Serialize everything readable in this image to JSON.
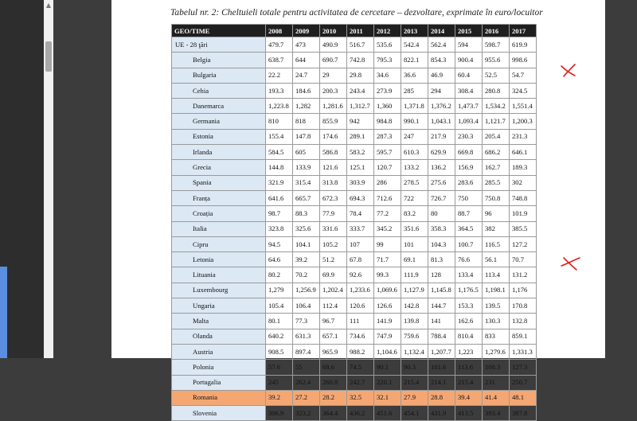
{
  "caption": "Tabelul nr. 2: Cheltuieli totale pentru activitatea de cercetare – dezvoltare, exprimate în euro/locuitor",
  "scrollbar": {
    "up_glyph": "▲"
  },
  "table": {
    "headers": [
      "GEO/TIME",
      "2008",
      "2009",
      "2010",
      "2011",
      "2012",
      "2013",
      "2014",
      "2015",
      "2016",
      "2017"
    ],
    "rows": [
      {
        "country": "UE - 28 ţări",
        "values": [
          "479.7",
          "473",
          "490.9",
          "516.7",
          "535.6",
          "542.4",
          "562.4",
          "594",
          "598.7",
          "619.9"
        ]
      },
      {
        "country": "Belgia",
        "values": [
          "638.7",
          "644",
          "690.7",
          "742.8",
          "795.3",
          "822.1",
          "854.3",
          "900.4",
          "955.6",
          "998.6"
        ]
      },
      {
        "country": "Bulgaria",
        "values": [
          "22.2",
          "24.7",
          "29",
          "29.8",
          "34.6",
          "36.6",
          "46.9",
          "60.4",
          "52.5",
          "54.7"
        ]
      },
      {
        "country": "Cehia",
        "values": [
          "193.3",
          "184.6",
          "200.3",
          "243.4",
          "273.9",
          "285",
          "294",
          "308.4",
          "280.8",
          "324.5"
        ]
      },
      {
        "country": "Danemarca",
        "values": [
          "1,223.8",
          "1,282",
          "1,281.6",
          "1,312.7",
          "1,360",
          "1,371.8",
          "1,376.2",
          "1,473.7",
          "1,534.2",
          "1,551.4"
        ]
      },
      {
        "country": "Germania",
        "values": [
          "810",
          "818",
          "855.9",
          "942",
          "984.8",
          "990.1",
          "1,043.1",
          "1,093.4",
          "1,121.7",
          "1,200.3"
        ]
      },
      {
        "country": "Estonia",
        "values": [
          "155.4",
          "147.8",
          "174.6",
          "289.1",
          "287.3",
          "247",
          "217.9",
          "230.3",
          "205.4",
          "231.3"
        ]
      },
      {
        "country": "Irlanda",
        "values": [
          "584.5",
          "605",
          "586.8",
          "583.2",
          "595.7",
          "610.3",
          "629.9",
          "669.8",
          "686.2",
          "646.1"
        ]
      },
      {
        "country": "Grecia",
        "values": [
          "144.8",
          "133.9",
          "121.6",
          "125.1",
          "120.7",
          "133.2",
          "136.2",
          "156.9",
          "162.7",
          "189.3"
        ]
      },
      {
        "country": "Spania",
        "values": [
          "321.9",
          "315.4",
          "313.8",
          "303.9",
          "286",
          "278.5",
          "275.6",
          "283.6",
          "285.5",
          "302"
        ]
      },
      {
        "country": "Franța",
        "values": [
          "641.6",
          "665.7",
          "672.3",
          "694.3",
          "712.6",
          "722",
          "726.7",
          "750",
          "750.8",
          "748.8"
        ]
      },
      {
        "country": "Croația",
        "values": [
          "98.7",
          "88.3",
          "77.9",
          "78.4",
          "77.2",
          "83.2",
          "80",
          "88.7",
          "96",
          "101.9"
        ]
      },
      {
        "country": "Italia",
        "values": [
          "323.8",
          "325.6",
          "331.6",
          "333.7",
          "345.2",
          "351.6",
          "358.3",
          "364.5",
          "382",
          "385.5"
        ]
      },
      {
        "country": "Cipru",
        "values": [
          "94.5",
          "104.1",
          "105.2",
          "107",
          "99",
          "101",
          "104.3",
          "100.7",
          "116.5",
          "127.2"
        ]
      },
      {
        "country": "Letonia",
        "values": [
          "64.6",
          "39.2",
          "51.2",
          "67.8",
          "71.7",
          "69.1",
          "81.3",
          "76.6",
          "56.1",
          "70.7"
        ]
      },
      {
        "country": "Lituania",
        "values": [
          "80.2",
          "70.2",
          "69.9",
          "92.6",
          "99.3",
          "111.9",
          "128",
          "133.4",
          "113.4",
          "131.2"
        ]
      },
      {
        "country": "Luxembourg",
        "values": [
          "1,279",
          "1,256.9",
          "1,202.4",
          "1,233.6",
          "1,069.6",
          "1,127.9",
          "1,145.8",
          "1,176.5",
          "1,198.1",
          "1,176"
        ]
      },
      {
        "country": "Ungaria",
        "values": [
          "105.4",
          "106.4",
          "112.4",
          "120.6",
          "126.6",
          "142.8",
          "144.7",
          "153.3",
          "139.5",
          "170.8"
        ]
      },
      {
        "country": "Malta",
        "values": [
          "80.1",
          "77.3",
          "96.7",
          "111",
          "141.9",
          "139.8",
          "141",
          "162.6",
          "130.3",
          "132.8"
        ]
      },
      {
        "country": "Olanda",
        "values": [
          "640.2",
          "631.3",
          "657.1",
          "734.6",
          "747.9",
          "759.6",
          "788.4",
          "810.4",
          "833",
          "859.1"
        ]
      },
      {
        "country": "Austria",
        "values": [
          "908.5",
          "897.4",
          "965.9",
          "988.2",
          "1,104.6",
          "1,132.4",
          "1,207.7",
          "1,223",
          "1,279.6",
          "1,331.3"
        ]
      },
      {
        "country": "Polonia",
        "values": [
          "57.6",
          "55",
          "68.6",
          "74.5",
          "90.1",
          "90.3",
          "101.6",
          "113.6",
          "108.3",
          "127.3"
        ]
      },
      {
        "country": "Portugalia",
        "values": [
          "245",
          "262.4",
          "260.8",
          "242.7",
          "220.1",
          "215.4",
          "214.1",
          "215.4",
          "231",
          "250.7"
        ]
      },
      {
        "country": "Romania",
        "values": [
          "39.2",
          "27.2",
          "28.2",
          "32.5",
          "32.1",
          "27.9",
          "28.8",
          "39.4",
          "41.4",
          "48.1"
        ]
      },
      {
        "country": "Slovenia",
        "values": [
          "306.9",
          "323.2",
          "364.4",
          "436.2",
          "451.6",
          "454.1",
          "431.9",
          "413.5",
          "393.4",
          "387.8"
        ]
      }
    ]
  },
  "colors": {
    "annotation": "#e0201a",
    "highlight_row": "#f4a773",
    "country_cell": "#dce8f4",
    "header_bg": "#1f1f1f"
  }
}
